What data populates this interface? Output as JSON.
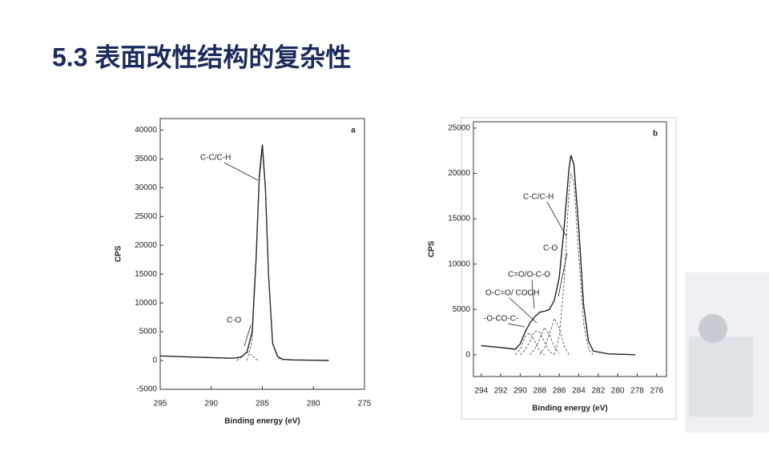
{
  "title": "5.3 表面改性结构的复杂性",
  "chart_data": [
    {
      "type": "line",
      "panel_label": "a",
      "xlabel": "Binding energy (eV)",
      "ylabel": "CPS",
      "xlim": [
        295,
        275
      ],
      "xticks": [
        295,
        290,
        285,
        280,
        275
      ],
      "ylim": [
        -5000,
        42000
      ],
      "yticks": [
        -5000,
        0,
        5000,
        10000,
        15000,
        20000,
        25000,
        30000,
        35000,
        40000
      ],
      "x": [
        295,
        292,
        290,
        288,
        287.5,
        287,
        286.5,
        286,
        285.6,
        285.3,
        285,
        284.7,
        284.4,
        284,
        283.5,
        283,
        282,
        280,
        278.5
      ],
      "series": [
        {
          "color": "#222222",
          "dashed": false,
          "values": [
            800,
            600,
            500,
            400,
            450,
            700,
            1500,
            5000,
            18000,
            32000,
            37500,
            30000,
            15000,
            3000,
            700,
            200,
            100,
            50,
            0
          ]
        },
        {
          "color": "#444444",
          "dashed": true,
          "values": [
            null,
            null,
            null,
            null,
            0,
            600,
            1400,
            900,
            200,
            0,
            null,
            null,
            null,
            null,
            null,
            null,
            null,
            null,
            null
          ]
        },
        {
          "color": "#444444",
          "dashed": true,
          "values": [
            null,
            null,
            null,
            null,
            null,
            null,
            0,
            3500,
            17000,
            31000,
            36500,
            29500,
            15000,
            2800,
            500,
            0,
            null,
            null,
            null
          ]
        }
      ],
      "annotations": [
        "C-C/C-H",
        "C-O"
      ]
    },
    {
      "type": "line",
      "panel_label": "b",
      "xlabel": "Binding energy (eV)",
      "ylabel": "CPS",
      "xlim": [
        294.8,
        275
      ],
      "xticks": [
        294,
        292,
        290,
        288,
        286,
        284,
        282,
        280,
        278,
        276
      ],
      "ylim": [
        -2400,
        25700
      ],
      "yticks": [
        0,
        5000,
        10000,
        15000,
        20000,
        25000
      ],
      "x": [
        294,
        292,
        290.5,
        290,
        289.5,
        289,
        288.5,
        288,
        287.5,
        287,
        286.5,
        286,
        285.5,
        285,
        284.8,
        284.5,
        284,
        283.5,
        283,
        282.5,
        281,
        278.2
      ],
      "series": [
        {
          "color": "#222222",
          "dashed": false,
          "values": [
            1000,
            800,
            600,
            1200,
            2500,
            3500,
            4200,
            4700,
            4800,
            5000,
            6000,
            8500,
            14000,
            20500,
            22000,
            21000,
            14000,
            5500,
            1500,
            400,
            100,
            0
          ]
        },
        {
          "color": "#444444",
          "dashed": true,
          "values": [
            null,
            null,
            0,
            600,
            2000,
            2400,
            1500,
            400,
            0,
            null,
            null,
            null,
            null,
            null,
            null,
            null,
            null,
            null,
            null,
            null,
            null,
            null
          ]
        },
        {
          "color": "#444444",
          "dashed": true,
          "values": [
            null,
            null,
            null,
            0,
            500,
            1500,
            2600,
            2500,
            1400,
            300,
            0,
            null,
            null,
            null,
            null,
            null,
            null,
            null,
            null,
            null,
            null,
            null
          ]
        },
        {
          "color": "#444444",
          "dashed": true,
          "values": [
            null,
            null,
            null,
            null,
            null,
            0,
            600,
            1800,
            3000,
            2200,
            900,
            100,
            null,
            null,
            null,
            null,
            null,
            null,
            null,
            null,
            null,
            null
          ]
        },
        {
          "color": "#444444",
          "dashed": true,
          "values": [
            null,
            null,
            null,
            null,
            null,
            null,
            null,
            0,
            800,
            2300,
            4000,
            3000,
            1000,
            0,
            null,
            null,
            null,
            null,
            null,
            null,
            null,
            null
          ]
        },
        {
          "color": "#444444",
          "dashed": true,
          "values": [
            null,
            null,
            null,
            null,
            null,
            null,
            null,
            null,
            null,
            null,
            0,
            2000,
            8000,
            18000,
            20000,
            19000,
            11000,
            3500,
            600,
            0,
            null,
            null
          ]
        }
      ],
      "annotations": [
        "C-C/C-H",
        "C-O",
        "C=O/O-C-O",
        "O-C=O/ COOH",
        "-O-CO-C-"
      ]
    }
  ]
}
